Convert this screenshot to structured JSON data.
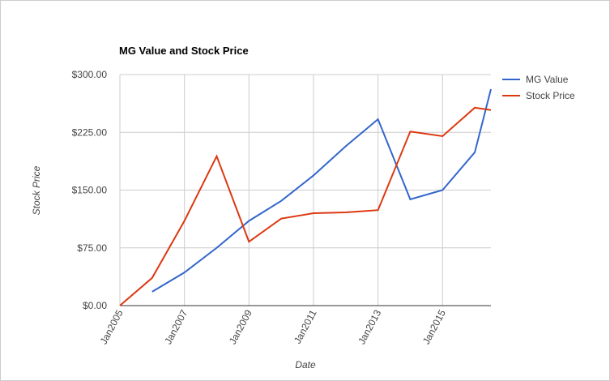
{
  "chart_data": {
    "type": "line",
    "title": "MG Value and Stock Price",
    "x_label": "Date",
    "y_label": "Stock Price",
    "x": [
      2005,
      2006,
      2007,
      2008,
      2009,
      2010,
      2011,
      2012,
      2013,
      2014,
      2015,
      2016,
      2016.5
    ],
    "series": [
      {
        "name": "MG Value",
        "color": "#3366cc",
        "values": [
          null,
          18,
          43,
          75,
          110,
          136,
          169,
          207,
          242,
          138,
          150,
          199,
          281
        ]
      },
      {
        "name": "Stock Price",
        "color": "#dc3912",
        "values": [
          0,
          36,
          110,
          194,
          83,
          113,
          120,
          121,
          124,
          226,
          220,
          257,
          254
        ]
      }
    ],
    "xlim": [
      2005,
      2016.5
    ],
    "xticks": [
      {
        "value": 2005,
        "label": "Jan2005"
      },
      {
        "value": 2007,
        "label": "Jan2007"
      },
      {
        "value": 2009,
        "label": "Jan2009"
      },
      {
        "value": 2011,
        "label": "Jan2011"
      },
      {
        "value": 2013,
        "label": "Jan2013"
      },
      {
        "value": 2015,
        "label": "Jan2015"
      }
    ],
    "ylim": [
      0,
      300
    ],
    "yticks": [
      {
        "value": 0,
        "label": "$0.00"
      },
      {
        "value": 75,
        "label": "$75.00"
      },
      {
        "value": 150,
        "label": "$150.00"
      },
      {
        "value": 225,
        "label": "$225.00"
      },
      {
        "value": 300,
        "label": "$300.00"
      }
    ],
    "grid": true,
    "legend": "right"
  }
}
